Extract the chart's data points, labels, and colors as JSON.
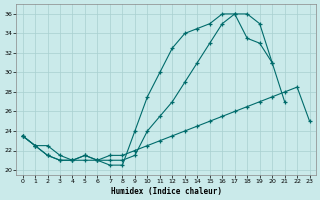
{
  "xlabel": "Humidex (Indice chaleur)",
  "bg_color": "#caeaea",
  "grid_color": "#a8d0d0",
  "line_color": "#006b6b",
  "xlim": [
    -0.5,
    23.5
  ],
  "ylim": [
    19.5,
    37.0
  ],
  "xticks": [
    0,
    1,
    2,
    3,
    4,
    5,
    6,
    7,
    8,
    9,
    10,
    11,
    12,
    13,
    14,
    15,
    16,
    17,
    18,
    19,
    20,
    21,
    22,
    23
  ],
  "yticks": [
    20,
    22,
    24,
    26,
    28,
    30,
    32,
    34,
    36
  ],
  "line1_x": [
    0,
    1,
    2,
    3,
    4,
    5,
    6,
    7,
    8,
    9,
    10,
    11,
    12,
    13,
    14,
    15,
    16,
    17,
    18,
    19,
    20,
    21
  ],
  "line1_y": [
    23.5,
    22.5,
    21.5,
    21.0,
    21.0,
    21.0,
    21.0,
    20.5,
    20.5,
    24.0,
    27.5,
    30.0,
    32.5,
    34.0,
    34.5,
    35.0,
    36.0,
    36.0,
    36.0,
    35.0,
    31.0,
    27.0
  ],
  "line2_x": [
    0,
    1,
    2,
    3,
    4,
    5,
    6,
    7,
    8,
    9,
    10,
    11,
    12,
    13,
    14,
    15,
    16,
    17,
    18,
    19,
    20
  ],
  "line2_y": [
    23.5,
    22.5,
    21.5,
    21.0,
    21.0,
    21.5,
    21.0,
    21.0,
    21.0,
    21.5,
    24.0,
    25.5,
    27.0,
    29.0,
    31.0,
    33.0,
    35.0,
    36.0,
    33.5,
    33.0,
    31.0
  ],
  "line3_x": [
    0,
    1,
    2,
    3,
    4,
    5,
    6,
    7,
    8,
    9,
    10,
    11,
    12,
    13,
    14,
    15,
    16,
    17,
    18,
    19,
    20,
    21,
    22,
    23
  ],
  "line3_y": [
    23.5,
    22.5,
    22.5,
    21.5,
    21.0,
    21.5,
    21.0,
    21.5,
    21.5,
    22.0,
    22.5,
    23.0,
    23.5,
    24.0,
    24.5,
    25.0,
    25.5,
    26.0,
    26.5,
    27.0,
    27.5,
    28.0,
    28.5,
    25.0
  ]
}
